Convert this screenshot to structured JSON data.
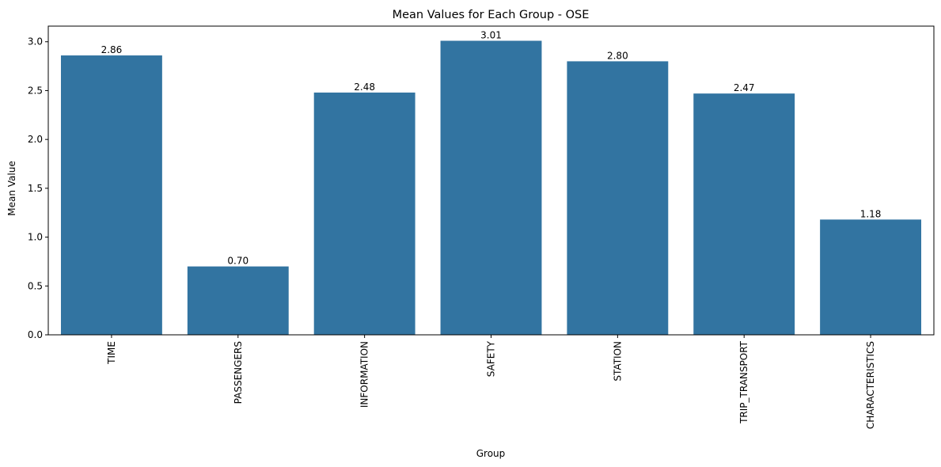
{
  "chart_data": {
    "type": "bar",
    "title": "Mean Values for Each Group - OSE",
    "xlabel": "Group",
    "ylabel": "Mean Value",
    "categories": [
      "TIME",
      "PASSENGERS",
      "INFORMATION",
      "SAFETY",
      "STATION",
      "TRIP_TRANSPORT",
      "CHARACTERISTICS"
    ],
    "values": [
      2.86,
      0.7,
      2.48,
      3.01,
      2.8,
      2.47,
      1.18
    ],
    "value_labels": [
      "2.86",
      "0.70",
      "2.48",
      "3.01",
      "2.80",
      "2.47",
      "1.18"
    ],
    "ylim": [
      0,
      3.16
    ],
    "yticks": [
      0.0,
      0.5,
      1.0,
      1.5,
      2.0,
      2.5,
      3.0
    ],
    "ytick_labels": [
      "0.0",
      "0.5",
      "1.0",
      "1.5",
      "2.0",
      "2.5",
      "3.0"
    ],
    "grid": false,
    "legend": "none",
    "colors": {
      "bar": "#3274a1",
      "text": "#000000",
      "axis": "#000000"
    }
  }
}
